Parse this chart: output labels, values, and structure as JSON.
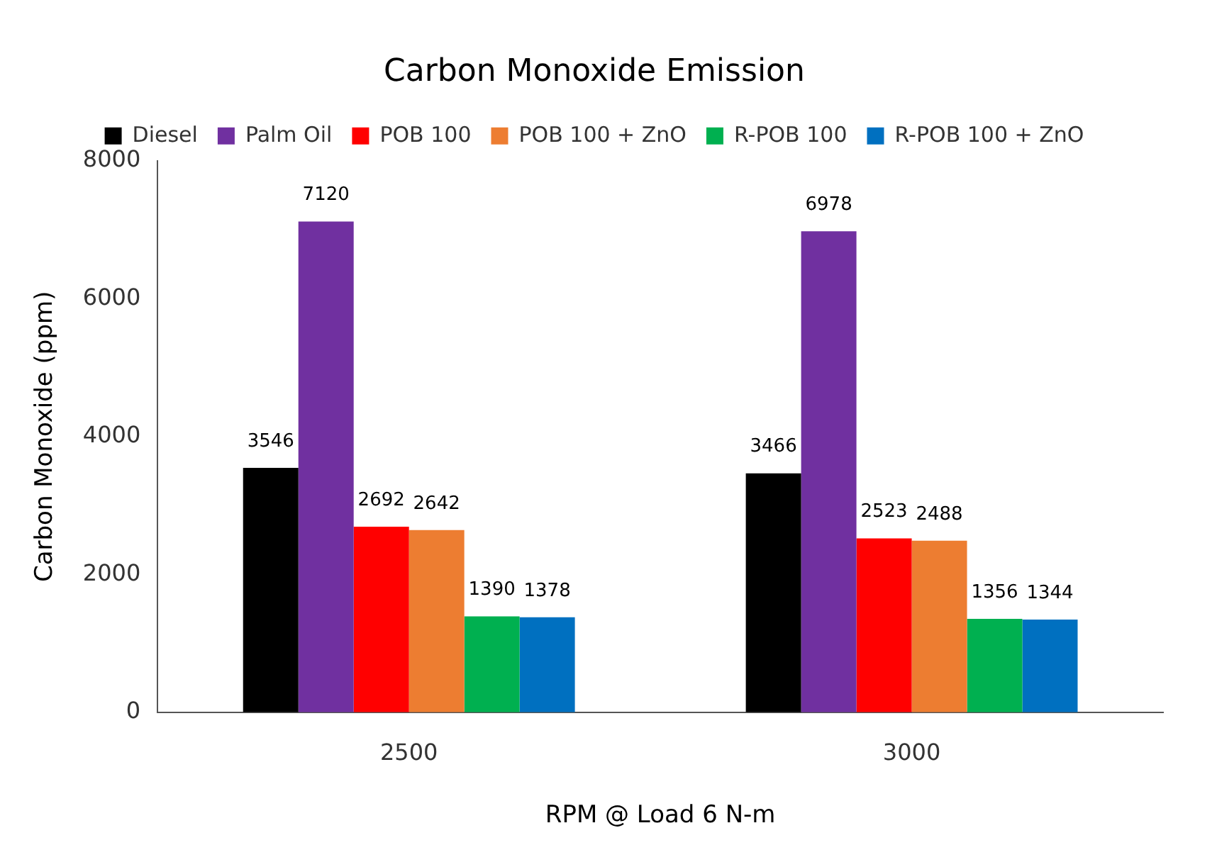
{
  "chart_data": {
    "type": "bar",
    "title": "Carbon Monoxide Emission",
    "xlabel": "RPM @ Load 6 N-m",
    "ylabel": "Carbon Monoxide (ppm)",
    "categories": [
      "2500",
      "3000"
    ],
    "series": [
      {
        "name": "Diesel",
        "color": "#000000",
        "values": [
          3546,
          3466
        ]
      },
      {
        "name": "Palm Oil",
        "color": "#7030a0",
        "values": [
          7120,
          6978
        ]
      },
      {
        "name": "POB 100",
        "color": "#ff0000",
        "values": [
          2692,
          2523
        ]
      },
      {
        "name": "POB 100 + ZnO",
        "color": "#ed7d31",
        "values": [
          2642,
          2488
        ]
      },
      {
        "name": "R-POB 100",
        "color": "#00b050",
        "values": [
          1390,
          1356
        ]
      },
      {
        "name": "R-POB 100 + ZnO",
        "color": "#0070c0",
        "values": [
          1378,
          1344
        ]
      }
    ],
    "ylim": [
      0,
      8000
    ],
    "yticks": [
      0,
      2000,
      4000,
      6000,
      8000
    ],
    "grid": false,
    "legend": "top",
    "data_labels": true
  }
}
